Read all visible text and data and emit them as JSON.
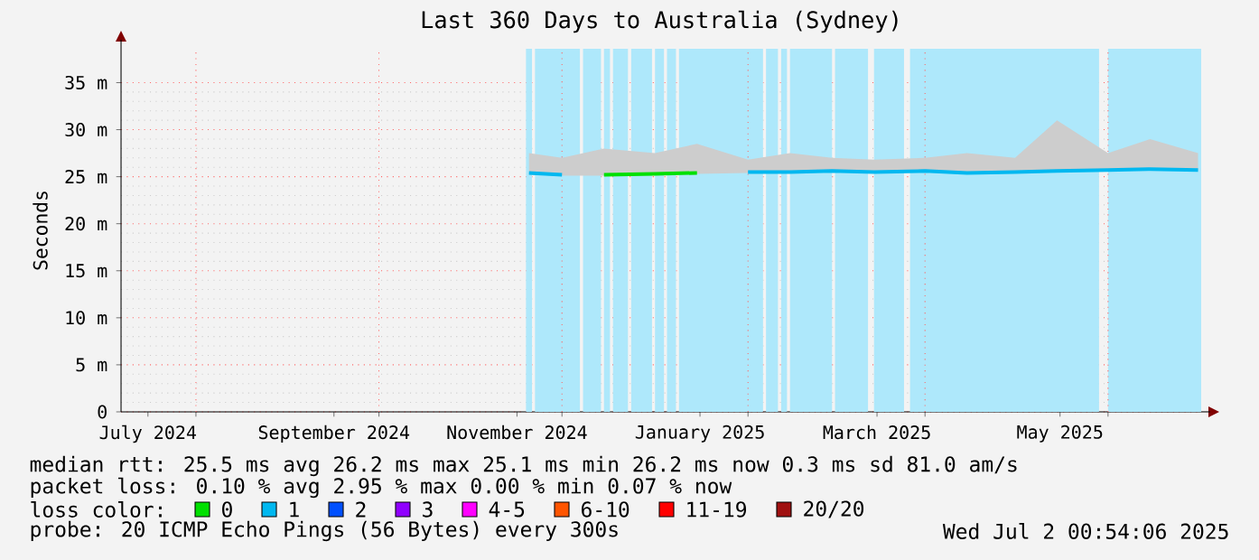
{
  "chart_data": {
    "type": "line",
    "title": "Last 360 Days to Australia (Sydney)",
    "ylabel": "Seconds",
    "xlim": [
      "2024-07-07T00:54",
      "2025-07-02T00:54"
    ],
    "xticks": [
      {
        "value": "2024-07-16",
        "label": "July 2024"
      },
      {
        "value": "2024-08-01",
        "label": null
      },
      {
        "value": "2024-09-16",
        "label": "September 2024"
      },
      {
        "value": "2024-10-01",
        "label": null
      },
      {
        "value": "2024-11-16",
        "label": "November 2024"
      },
      {
        "value": "2024-12-01",
        "label": null
      },
      {
        "value": "2025-01-16",
        "label": "January 2025"
      },
      {
        "value": "2025-02-01",
        "label": null
      },
      {
        "value": "2025-03-16",
        "label": "March 2025"
      },
      {
        "value": "2025-04-01",
        "label": null
      },
      {
        "value": "2025-05-16",
        "label": "May 2025"
      },
      {
        "value": "2025-06-01",
        "label": null
      }
    ],
    "ylim": [
      0,
      38.6
    ],
    "yticks": [
      {
        "value": 0,
        "label": "0"
      },
      {
        "value": 5,
        "label": "5 m"
      },
      {
        "value": 10,
        "label": "10 m"
      },
      {
        "value": 15,
        "label": "15 m"
      },
      {
        "value": 20,
        "label": "20 m"
      },
      {
        "value": 25,
        "label": "25 m"
      },
      {
        "value": 30,
        "label": "30 m"
      },
      {
        "value": 35,
        "label": "35 m"
      }
    ],
    "grid": true,
    "legend": "bottom",
    "legend_title": "loss color:",
    "x": [
      "2024-11-20",
      "2024-12-01",
      "2024-12-15",
      "2025-01-01",
      "2025-01-15",
      "2025-02-01",
      "2025-02-15",
      "2025-03-01",
      "2025-03-15",
      "2025-04-01",
      "2025-04-15",
      "2025-05-01",
      "2025-05-15",
      "2025-06-01",
      "2025-06-15",
      "2025-07-01"
    ],
    "series": [
      {
        "name": "0",
        "color": "#00e000",
        "values": [
          null,
          null,
          25.2,
          25.3,
          25.4,
          null,
          null,
          null,
          null,
          null,
          null,
          null,
          null,
          null,
          null,
          null
        ]
      },
      {
        "name": "1",
        "color": "#00b8f0",
        "values": [
          25.4,
          25.2,
          null,
          null,
          null,
          25.5,
          25.5,
          25.6,
          25.5,
          25.6,
          25.4,
          25.5,
          25.6,
          25.7,
          25.8,
          25.7
        ],
        "lower": [
          25.2,
          25.1,
          25.1,
          25.2,
          25.3,
          25.4,
          25.4,
          25.5,
          25.4,
          25.5,
          25.3,
          25.4,
          25.5,
          25.6,
          25.7,
          25.6
        ],
        "upper": [
          27.5,
          27.0,
          28.0,
          27.5,
          28.5,
          26.8,
          27.5,
          27.0,
          26.8,
          27.0,
          27.5,
          27.0,
          31.0,
          27.5,
          29.0,
          27.5
        ]
      },
      {
        "name": "2",
        "color": "#0050ff",
        "values": [
          null,
          null,
          null,
          null,
          null,
          null,
          null,
          null,
          null,
          null,
          null,
          null,
          null,
          null,
          null,
          null
        ]
      },
      {
        "name": "3",
        "color": "#9000ff",
        "values": [
          null,
          null,
          null,
          null,
          null,
          null,
          null,
          null,
          null,
          null,
          null,
          null,
          null,
          null,
          null,
          null
        ]
      },
      {
        "name": "4-5",
        "color": "#ff00ff",
        "values": [
          null,
          null,
          null,
          null,
          null,
          null,
          null,
          null,
          null,
          null,
          null,
          null,
          null,
          null,
          null,
          null
        ]
      },
      {
        "name": "6-10",
        "color": "#ff5500",
        "values": [
          null,
          null,
          null,
          null,
          null,
          null,
          null,
          null,
          null,
          null,
          null,
          null,
          null,
          null,
          null,
          null
        ]
      },
      {
        "name": "11-19",
        "color": "#ff0000",
        "values": [
          null,
          null,
          null,
          null,
          null,
          null,
          null,
          null,
          null,
          null,
          null,
          null,
          null,
          null,
          null,
          null
        ]
      },
      {
        "name": "20/20",
        "color": "#a01010",
        "values": [
          null,
          null,
          null,
          null,
          null,
          null,
          null,
          null,
          null,
          null,
          null,
          null,
          null,
          null,
          null,
          null
        ]
      }
    ],
    "bands": [
      {
        "axis": "x",
        "from": "2024-11-19",
        "to": "2024-11-21",
        "color": "#aee8fb"
      },
      {
        "axis": "x",
        "from": "2024-11-22",
        "to": "2024-12-07",
        "color": "#aee8fb"
      },
      {
        "axis": "x",
        "from": "2024-12-08",
        "to": "2024-12-14",
        "color": "#aee8fb"
      },
      {
        "axis": "x",
        "from": "2024-12-15",
        "to": "2024-12-17",
        "color": "#aee8fb"
      },
      {
        "axis": "x",
        "from": "2024-12-18",
        "to": "2024-12-23",
        "color": "#aee8fb"
      },
      {
        "axis": "x",
        "from": "2024-12-24",
        "to": "2024-12-31",
        "color": "#aee8fb"
      },
      {
        "axis": "x",
        "from": "2025-01-01",
        "to": "2025-01-04",
        "color": "#aee8fb"
      },
      {
        "axis": "x",
        "from": "2025-01-05",
        "to": "2025-01-08",
        "color": "#aee8fb"
      },
      {
        "axis": "x",
        "from": "2025-01-09",
        "to": "2025-02-06",
        "color": "#aee8fb"
      },
      {
        "axis": "x",
        "from": "2025-02-07",
        "to": "2025-02-11",
        "color": "#aee8fb"
      },
      {
        "axis": "x",
        "from": "2025-02-12",
        "to": "2025-02-14",
        "color": "#aee8fb"
      },
      {
        "axis": "x",
        "from": "2025-02-15",
        "to": "2025-03-01",
        "color": "#aee8fb"
      },
      {
        "axis": "x",
        "from": "2025-03-02",
        "to": "2025-03-13",
        "color": "#aee8fb"
      },
      {
        "axis": "x",
        "from": "2025-03-15",
        "to": "2025-03-25",
        "color": "#aee8fb"
      },
      {
        "axis": "x",
        "from": "2025-03-27",
        "to": "2025-05-29",
        "color": "#aee8fb"
      },
      {
        "axis": "x",
        "from": "2025-06-01",
        "to": "2025-07-02T00:54",
        "color": "#aee8fb"
      }
    ],
    "annotations": [
      "median rtt:  25.5 ms avg  26.2 ms max  25.1 ms min  26.2 ms now  0.3 ms sd  81.0   am/s",
      "packet loss: 0.10 % avg  2.95 % max  0.00 % min  0.07 % now",
      "probe:       20 ICMP Echo Pings (56 Bytes) every 300s",
      "Wed Jul  2 00:54:06 2025"
    ]
  }
}
